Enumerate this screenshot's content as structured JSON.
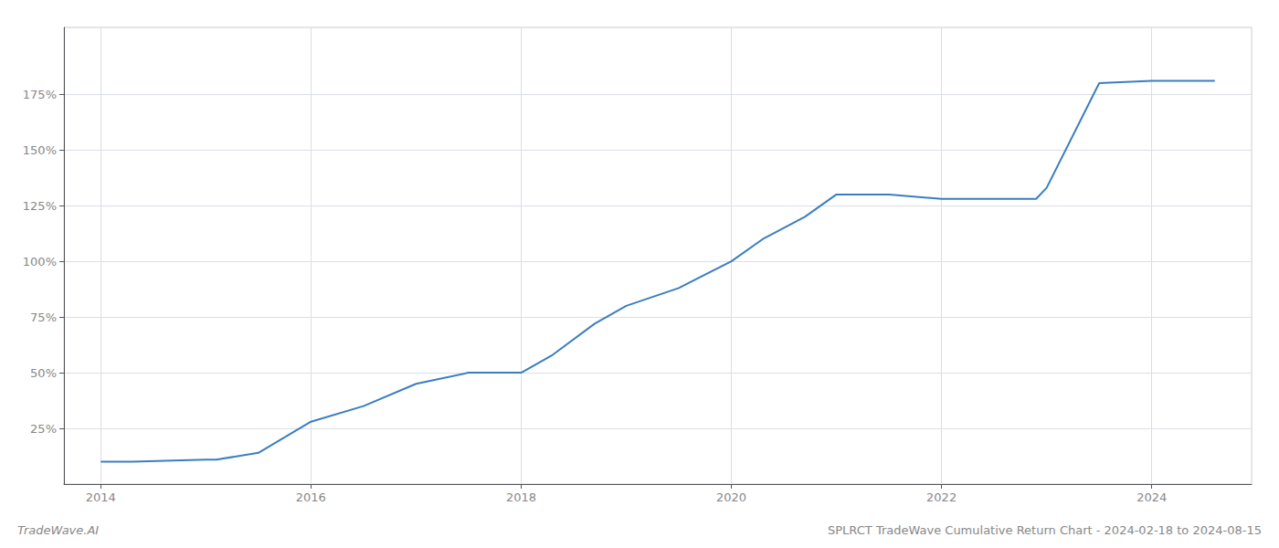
{
  "chart_data": {
    "type": "line",
    "title": "SPLRCT TradeWave Cumulative Return Chart - 2024-02-18 to 2024-08-15",
    "annotations": [
      "TradeWave.AI"
    ],
    "x": [
      2014.0,
      2014.3,
      2015.0,
      2015.1,
      2015.5,
      2016.0,
      2016.5,
      2017.0,
      2017.5,
      2018.0,
      2018.3,
      2018.7,
      2019.0,
      2019.5,
      2020.0,
      2020.3,
      2020.7,
      2021.0,
      2021.1,
      2021.5,
      2022.0,
      2022.1,
      2022.5,
      2022.9,
      2023.0,
      2023.5,
      2024.0,
      2024.6
    ],
    "values": [
      10,
      10,
      11,
      11,
      14,
      28,
      35,
      45,
      50,
      50,
      58,
      72,
      80,
      88,
      100,
      110,
      120,
      130,
      130,
      130,
      128,
      128,
      128,
      128,
      133,
      180,
      181,
      181
    ],
    "color": "#3a7ebf",
    "xlim": [
      2013.65,
      2024.95
    ],
    "xticks": [
      2014,
      2016,
      2018,
      2020,
      2022,
      2024
    ],
    "ylim": [
      0,
      205
    ],
    "yticks": [
      {
        "value": 25,
        "label": "25%"
      },
      {
        "value": 50,
        "label": "50%"
      },
      {
        "value": 75,
        "label": "75%"
      },
      {
        "value": 100,
        "label": "100%"
      },
      {
        "value": 125,
        "label": "125%"
      },
      {
        "value": 150,
        "label": "150%"
      },
      {
        "value": 175,
        "label": "175%"
      }
    ],
    "grid": true
  }
}
